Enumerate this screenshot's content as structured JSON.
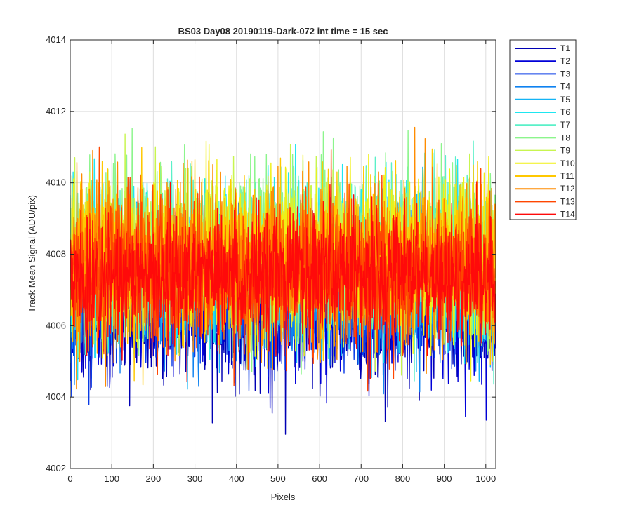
{
  "chart_data": {
    "type": "line",
    "title": "BS03 Day08 20190119-Dark-072 int time = 15 sec",
    "xlabel": "Pixels",
    "ylabel": "Track Mean Signal (ADU/pix)",
    "xlim": [
      0,
      1024
    ],
    "ylim": [
      4002,
      4014
    ],
    "xticks": [
      0,
      100,
      200,
      300,
      400,
      500,
      600,
      700,
      800,
      900,
      1000
    ],
    "yticks": [
      4002,
      4004,
      4006,
      4008,
      4010,
      4012,
      4014
    ],
    "grid": true,
    "legend_position": "outside-right",
    "series": [
      {
        "name": "T1",
        "color": "#0000b4",
        "mean": 4006.3,
        "spread": 0.9
      },
      {
        "name": "T2",
        "color": "#0000d8",
        "mean": 4006.6,
        "spread": 0.9
      },
      {
        "name": "T3",
        "color": "#0a3ce6",
        "mean": 4006.9,
        "spread": 0.9
      },
      {
        "name": "T4",
        "color": "#0f82f0",
        "mean": 4007.1,
        "spread": 0.9
      },
      {
        "name": "T5",
        "color": "#14b4f5",
        "mean": 4007.4,
        "spread": 1.0
      },
      {
        "name": "T6",
        "color": "#1ee6f0",
        "mean": 4007.9,
        "spread": 1.1
      },
      {
        "name": "T7",
        "color": "#5af0c8",
        "mean": 4008.0,
        "spread": 1.1
      },
      {
        "name": "T8",
        "color": "#8cf58c",
        "mean": 4008.1,
        "spread": 1.1
      },
      {
        "name": "T9",
        "color": "#c8f550",
        "mean": 4008.0,
        "spread": 1.1
      },
      {
        "name": "T10",
        "color": "#f0f014",
        "mean": 4008.0,
        "spread": 1.1
      },
      {
        "name": "T11",
        "color": "#ffc800",
        "mean": 4007.9,
        "spread": 1.1
      },
      {
        "name": "T12",
        "color": "#ff8c00",
        "mean": 4007.8,
        "spread": 1.1
      },
      {
        "name": "T13",
        "color": "#ff4600",
        "mean": 4007.6,
        "spread": 1.0
      },
      {
        "name": "T14",
        "color": "#ff0a0a",
        "mean": 4007.4,
        "spread": 0.9
      }
    ],
    "n_points": 1024,
    "x_step": 1
  }
}
